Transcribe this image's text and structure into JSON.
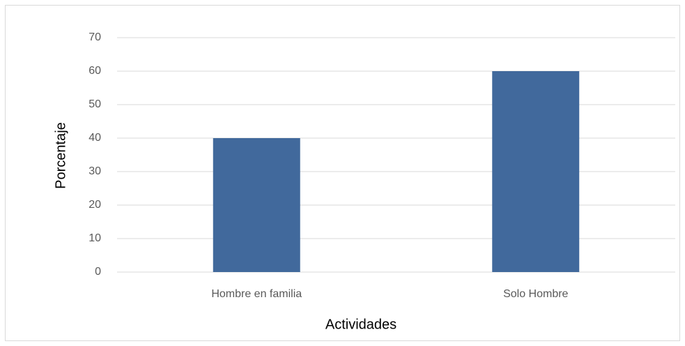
{
  "chart_data": {
    "type": "bar",
    "x_label": "Actividades",
    "y_label": "Porcentaje",
    "categories": [
      "Hombre en familia",
      "Solo Hombre"
    ],
    "values": [
      40,
      60
    ],
    "color": "#41699c",
    "ylim": [
      0,
      70
    ],
    "yticks": [
      0,
      10,
      20,
      30,
      40,
      50,
      60,
      70
    ],
    "grid": true
  }
}
